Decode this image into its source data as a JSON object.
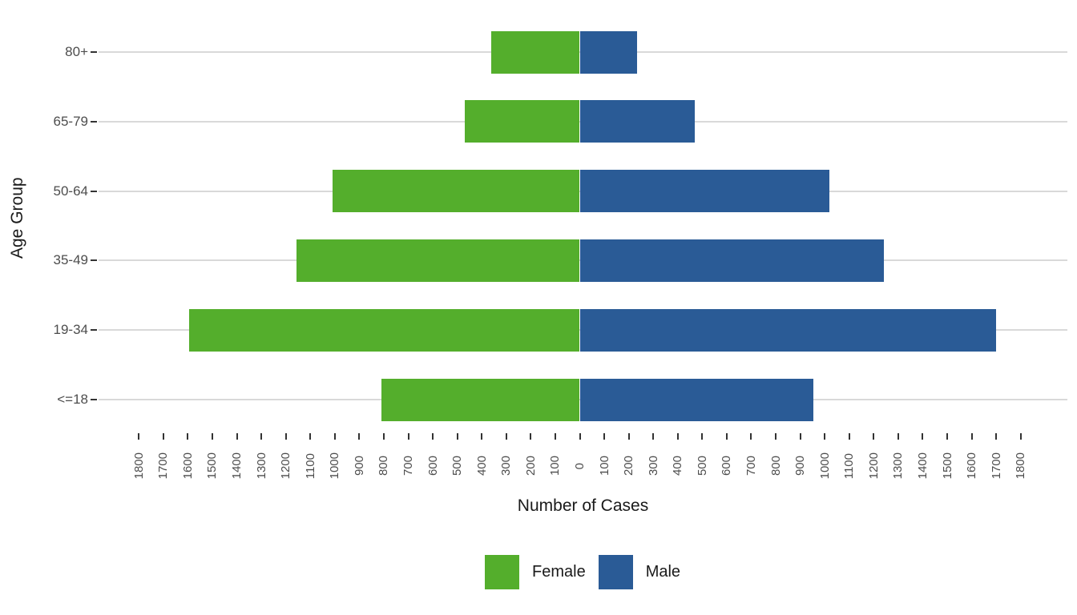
{
  "chart_data": {
    "type": "bar",
    "subtype": "population-pyramid",
    "orientation": "horizontal-diverging",
    "title": "",
    "xlabel": "Number of Cases",
    "ylabel": "Age Group",
    "categories_top_to_bottom": [
      "80+",
      "65-79",
      "50-64",
      "35-49",
      "19-34",
      "<=18"
    ],
    "series": [
      {
        "name": "Female",
        "side": "left",
        "color": "#54AE2C",
        "values_top_to_bottom": [
          360,
          470,
          1010,
          1155,
          1595,
          810
        ]
      },
      {
        "name": "Male",
        "side": "right",
        "color": "#2A5B96",
        "values_top_to_bottom": [
          235,
          470,
          1020,
          1240,
          1700,
          955
        ]
      }
    ],
    "xlim": [
      -1800,
      1800
    ],
    "x_tick_step": 100,
    "x_tick_labels_absolute_values": true,
    "grid": "horizontal-major-only",
    "legend_position": "bottom"
  },
  "colors": {
    "female_bar": "#54AE2C",
    "male_bar": "#2A5B96",
    "gridline": "#D9D9D9",
    "tick_mark": "#333333",
    "axis_text": "#4D4D4D",
    "title_text": "#1A1A1A",
    "background": "#FFFFFF"
  }
}
